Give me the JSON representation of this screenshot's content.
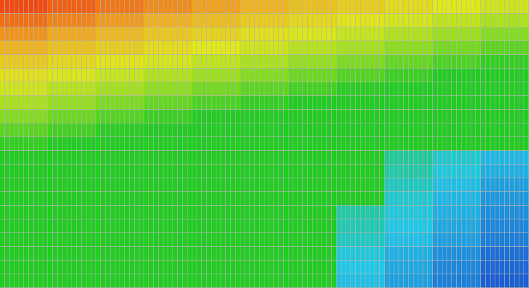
{
  "chart_data": {
    "type": "heatmap",
    "zlim": [
      10,
      92
    ],
    "colorscale": [
      [
        10,
        "#1a4fd0"
      ],
      [
        25,
        "#20c8e8"
      ],
      [
        40,
        "#22cc22"
      ],
      [
        55,
        "#9de01e"
      ],
      [
        65,
        "#e0e81a"
      ],
      [
        78,
        "#f0b020"
      ],
      [
        92,
        "#f04a10"
      ]
    ],
    "values": [
      [
        92,
        89,
        86,
        83,
        80,
        77,
        74,
        71,
        68,
        65,
        62
      ],
      [
        87,
        84,
        81,
        78,
        75,
        72,
        69,
        66,
        63,
        60,
        57
      ],
      [
        82,
        79,
        76,
        73,
        70,
        67,
        64,
        61,
        58,
        55,
        52
      ],
      [
        77,
        74,
        71,
        68,
        65,
        62,
        59,
        56,
        53,
        50,
        47
      ],
      [
        72,
        69,
        66,
        63,
        60,
        57,
        54,
        51,
        48,
        45,
        42
      ],
      [
        67,
        64,
        61,
        58,
        55,
        52,
        49,
        46,
        43,
        40,
        40
      ],
      [
        62,
        59,
        56,
        53,
        50,
        47,
        44,
        41,
        40,
        40,
        40
      ],
      [
        57,
        54,
        51,
        48,
        45,
        42,
        40,
        40,
        40,
        40,
        40
      ],
      [
        52,
        49,
        46,
        43,
        40,
        40,
        40,
        40,
        40,
        40,
        40
      ],
      [
        47,
        44,
        41,
        40,
        40,
        40,
        40,
        40,
        40,
        40,
        40
      ],
      [
        42,
        40,
        40,
        40,
        40,
        40,
        40,
        40,
        40,
        40,
        40
      ],
      [
        40,
        40,
        40,
        40,
        40,
        40,
        40,
        40,
        31,
        27,
        23
      ],
      [
        40,
        40,
        40,
        40,
        40,
        40,
        40,
        40,
        30,
        26,
        22
      ],
      [
        40,
        40,
        40,
        40,
        40,
        40,
        40,
        40,
        28,
        24,
        20
      ],
      [
        40,
        40,
        40,
        40,
        40,
        40,
        40,
        40,
        27,
        23,
        19
      ],
      [
        40,
        40,
        40,
        40,
        40,
        40,
        40,
        30,
        26,
        22,
        18
      ],
      [
        40,
        40,
        40,
        40,
        40,
        40,
        40,
        29,
        25,
        21,
        17
      ],
      [
        40,
        40,
        40,
        40,
        40,
        40,
        40,
        28,
        24,
        20,
        16
      ],
      [
        40,
        40,
        40,
        40,
        40,
        40,
        40,
        26,
        22,
        18,
        14
      ],
      [
        40,
        40,
        40,
        40,
        40,
        40,
        40,
        25,
        21,
        17,
        13
      ],
      [
        40,
        40,
        40,
        40,
        40,
        40,
        40,
        24,
        20,
        16,
        12
      ]
    ]
  }
}
